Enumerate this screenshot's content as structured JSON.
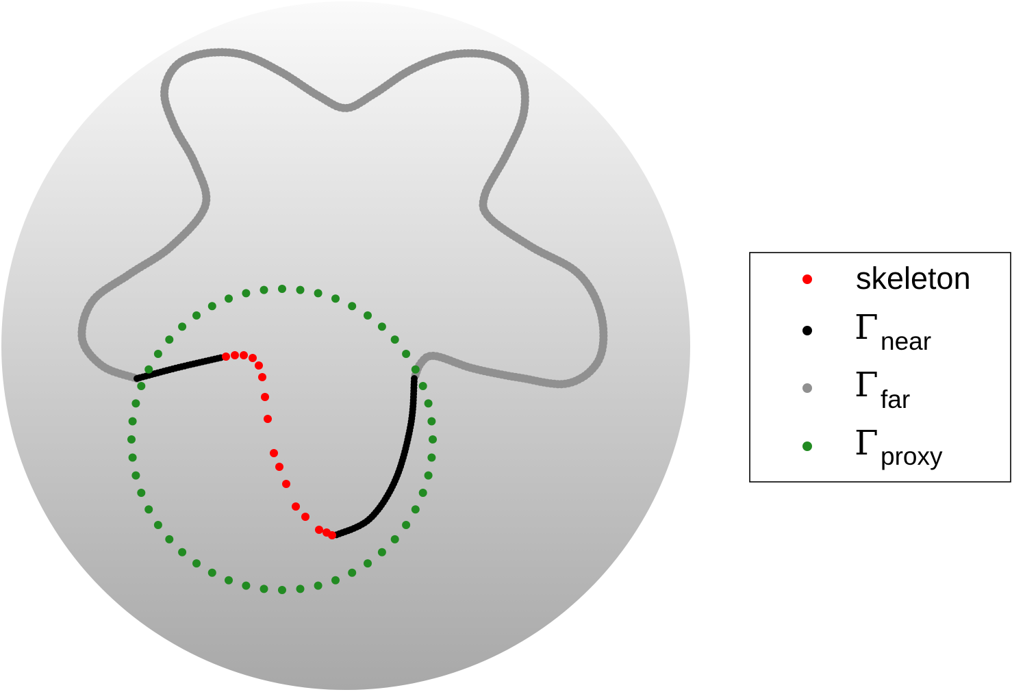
{
  "legend": {
    "items": [
      {
        "key": "skeleton",
        "label": "skeleton",
        "color": "#ff0000"
      },
      {
        "key": "near",
        "symbol": "Γ",
        "subscript": "near",
        "color": "#000000"
      },
      {
        "key": "far",
        "symbol": "Γ",
        "subscript": "far",
        "color": "#909090"
      },
      {
        "key": "proxy",
        "symbol": "Γ",
        "subscript": "proxy",
        "color": "#228b22"
      }
    ]
  },
  "colors": {
    "background_disk_top": "#fafafa",
    "background_disk_bottom": "#a8a8a8",
    "legend_border": "#000000"
  }
}
